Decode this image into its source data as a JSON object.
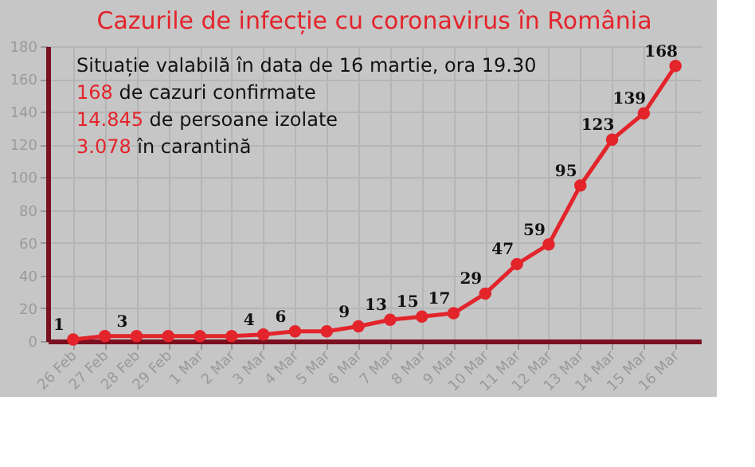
{
  "chart_data": {
    "type": "line",
    "title": "Cazurile de infecție cu coronavirus în România",
    "categories": [
      "26 Feb",
      "27 Feb",
      "28 Feb",
      "29 Feb",
      "1 Mar",
      "2 Mar",
      "3 Mar",
      "4 Mar",
      "5 Mar",
      "6 Mar",
      "7 Mar",
      "8 Mar",
      "9 Mar",
      "10 Mar",
      "11 Mar",
      "12 Mar",
      "13 Mar",
      "14 Mar",
      "15 Mar",
      "16 Mar"
    ],
    "series": [
      {
        "color": "#e3242b",
        "values": [
          1,
          3,
          3,
          3,
          3,
          3,
          4,
          6,
          6,
          9,
          13,
          15,
          17,
          29,
          47,
          59,
          95,
          123,
          139,
          168
        ],
        "value_labels": [
          "1",
          null,
          "3",
          null,
          null,
          null,
          "4",
          "6",
          null,
          "9",
          "13",
          "15",
          "17",
          "29",
          "47",
          "59",
          "95",
          "123",
          "139",
          "168"
        ]
      }
    ],
    "ylim": [
      0,
      180
    ],
    "yticks": [
      0,
      20,
      40,
      60,
      80,
      100,
      120,
      140,
      160,
      180
    ],
    "grid": true,
    "marker": "circle",
    "line_style": "solid",
    "annotations": [
      "Situație valabilă în data de 16 martie, ora 19.30",
      "168 de cazuri confirmate",
      "14.845 de persoane izolate",
      "3.078 în carantină"
    ]
  }
}
